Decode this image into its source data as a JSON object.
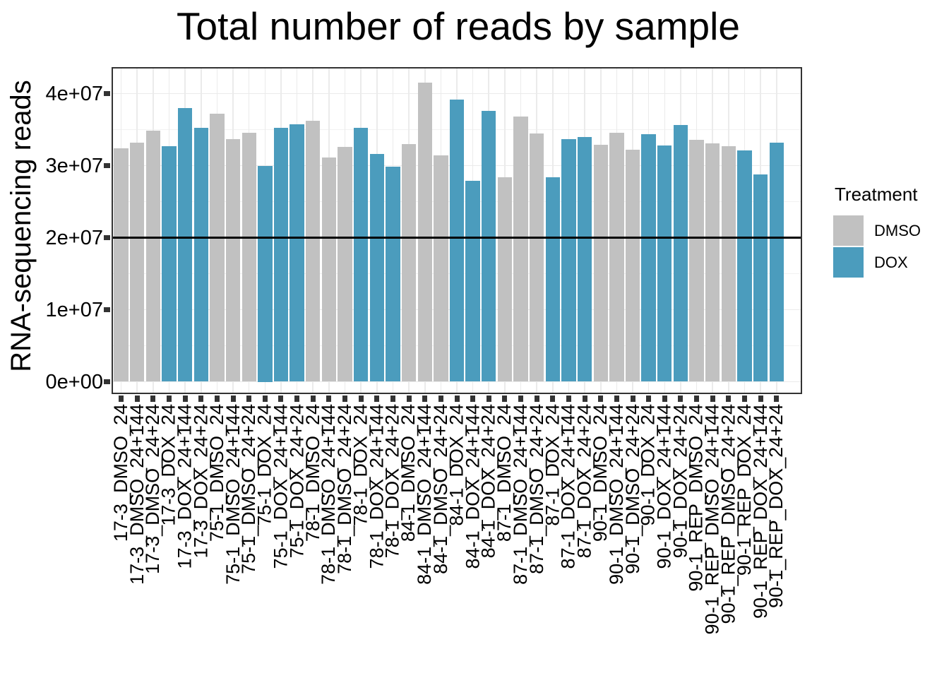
{
  "chart_data": {
    "type": "bar",
    "title": "Total number of reads by sample",
    "xlabel": "",
    "ylabel": "RNA-sequencing reads",
    "ylim": [
      0,
      43700000
    ],
    "y_ticks": [
      {
        "label": "0e+00",
        "value": 0
      },
      {
        "label": "1e+07",
        "value": 10000000
      },
      {
        "label": "2e+07",
        "value": 20000000
      },
      {
        "label": "3e+07",
        "value": 30000000
      },
      {
        "label": "4e+07",
        "value": 40000000
      }
    ],
    "y_minor_gridlines": [
      5000000,
      15000000,
      25000000,
      35000000
    ],
    "reference_line_y": 20000000,
    "grid": true,
    "legend": {
      "title": "Treatment",
      "position": "right",
      "entries": [
        {
          "label": "DMSO",
          "color": "#c1c1c1"
        },
        {
          "label": "DOX",
          "color": "#4b9cbd"
        }
      ]
    },
    "samples": [
      {
        "label": "17-3_DMSO_24",
        "treatment": "DMSO",
        "reads": 32400000
      },
      {
        "label": "17-3_DMSO_24+144",
        "treatment": "DMSO",
        "reads": 33200000
      },
      {
        "label": "17-3_DMSO_24+24",
        "treatment": "DMSO",
        "reads": 34900000
      },
      {
        "label": "17-3_DOX_24",
        "treatment": "DOX",
        "reads": 32700000
      },
      {
        "label": "17-3_DOX_24+144",
        "treatment": "DOX",
        "reads": 38000000
      },
      {
        "label": "17-3_DOX_24+24",
        "treatment": "DOX",
        "reads": 35200000
      },
      {
        "label": "75-1_DMSO_24",
        "treatment": "DMSO",
        "reads": 37200000
      },
      {
        "label": "75-1_DMSO_24+144",
        "treatment": "DMSO",
        "reads": 33700000
      },
      {
        "label": "75-1_DMSO_24+24",
        "treatment": "DMSO",
        "reads": 34600000
      },
      {
        "label": "75-1_DOX_24",
        "treatment": "DOX",
        "reads": 30000000
      },
      {
        "label": "75-1_DOX_24+144",
        "treatment": "DOX",
        "reads": 35200000
      },
      {
        "label": "75-1_DOX_24+24",
        "treatment": "DOX",
        "reads": 35700000
      },
      {
        "label": "78-1_DMSO_24",
        "treatment": "DMSO",
        "reads": 36200000
      },
      {
        "label": "78-1_DMSO_24+144",
        "treatment": "DMSO",
        "reads": 31100000
      },
      {
        "label": "78-1_DMSO_24+24",
        "treatment": "DMSO",
        "reads": 32600000
      },
      {
        "label": "78-1_DOX_24",
        "treatment": "DOX",
        "reads": 35200000
      },
      {
        "label": "78-1_DOX_24+144",
        "treatment": "DOX",
        "reads": 31600000
      },
      {
        "label": "78-1_DOX_24+24",
        "treatment": "DOX",
        "reads": 29900000
      },
      {
        "label": "84-1_DMSO_24",
        "treatment": "DMSO",
        "reads": 33000000
      },
      {
        "label": "84-1_DMSO_24+144",
        "treatment": "DMSO",
        "reads": 41500000
      },
      {
        "label": "84-1_DMSO_24+24",
        "treatment": "DMSO",
        "reads": 31400000
      },
      {
        "label": "84-1_DOX_24",
        "treatment": "DOX",
        "reads": 39200000
      },
      {
        "label": "84-1_DOX_24+144",
        "treatment": "DOX",
        "reads": 27900000
      },
      {
        "label": "84-1_DOX_24+24",
        "treatment": "DOX",
        "reads": 37600000
      },
      {
        "label": "87-1_DMSO_24",
        "treatment": "DMSO",
        "reads": 28400000
      },
      {
        "label": "87-1_DMSO_24+144",
        "treatment": "DMSO",
        "reads": 36800000
      },
      {
        "label": "87-1_DMSO_24+24",
        "treatment": "DMSO",
        "reads": 34500000
      },
      {
        "label": "87-1_DOX_24",
        "treatment": "DOX",
        "reads": 28400000
      },
      {
        "label": "87-1_DOX_24+144",
        "treatment": "DOX",
        "reads": 33700000
      },
      {
        "label": "87-1_DOX_24+24",
        "treatment": "DOX",
        "reads": 34000000
      },
      {
        "label": "90-1_DMSO_24",
        "treatment": "DMSO",
        "reads": 32900000
      },
      {
        "label": "90-1_DMSO_24+144",
        "treatment": "DMSO",
        "reads": 34600000
      },
      {
        "label": "90-1_DMSO_24+24",
        "treatment": "DMSO",
        "reads": 32200000
      },
      {
        "label": "90-1_DOX_24",
        "treatment": "DOX",
        "reads": 34400000
      },
      {
        "label": "90-1_DOX_24+144",
        "treatment": "DOX",
        "reads": 32800000
      },
      {
        "label": "90-1_DOX_24+24",
        "treatment": "DOX",
        "reads": 35600000
      },
      {
        "label": "90-1_REP_DMSO_24",
        "treatment": "DMSO",
        "reads": 33600000
      },
      {
        "label": "90-1_REP_DMSO_24+144",
        "treatment": "DMSO",
        "reads": 33100000
      },
      {
        "label": "90-1_REP_DMSO_24+24",
        "treatment": "DMSO",
        "reads": 32700000
      },
      {
        "label": "90-1_REP_DOX_24",
        "treatment": "DOX",
        "reads": 32100000
      },
      {
        "label": "90-1_REP_DOX_24+144",
        "treatment": "DOX",
        "reads": 28800000
      },
      {
        "label": "90-1_REP_DOX_24+24",
        "treatment": "DOX",
        "reads": 33200000
      }
    ],
    "colors": {
      "panel_background": "#ffffff",
      "panel_border": "#333333",
      "grid_major": "#ebebeb",
      "grid_minor": "#f2f2f2",
      "axis_ticks": "#333333",
      "reference_line": "#000000",
      "text": "#000000"
    }
  }
}
